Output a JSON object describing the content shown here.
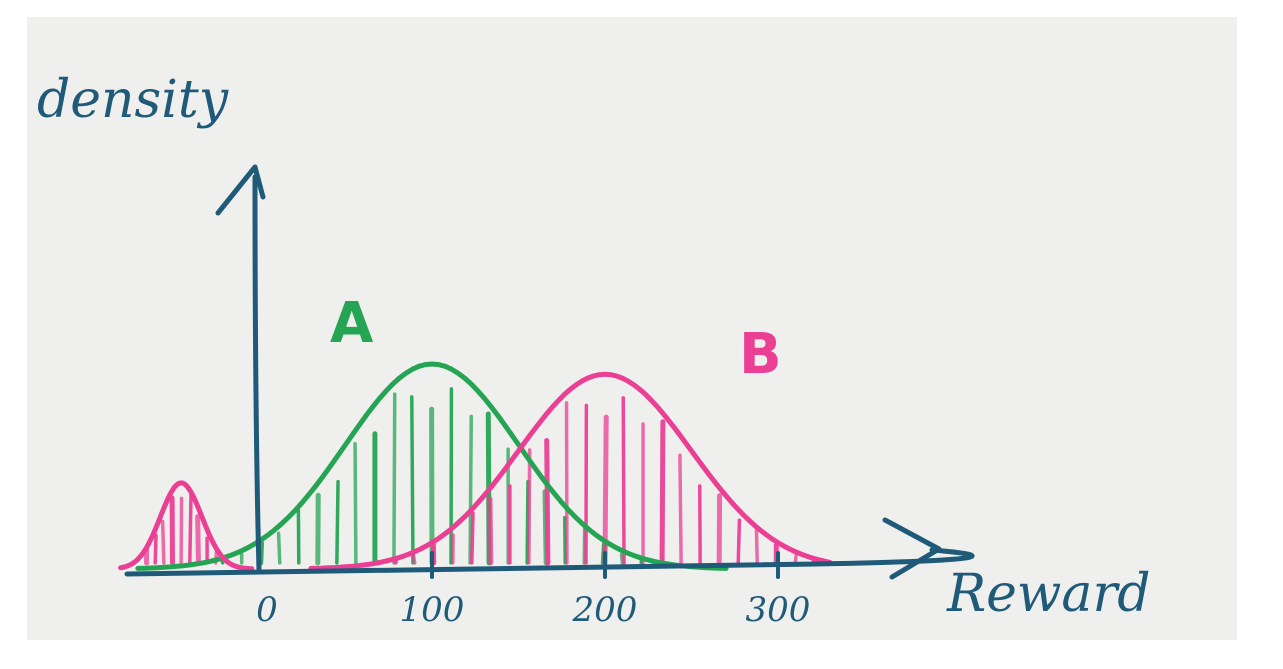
{
  "chart_data": {
    "type": "area",
    "xlabel": "Reward",
    "ylabel": "density",
    "xlim": [
      -80,
      330
    ],
    "ylim": [
      0,
      1.55
    ],
    "x_ticks": [
      0,
      100,
      200,
      300
    ],
    "x_tick_labels": [
      "0",
      "100",
      "200",
      "300"
    ],
    "grid": false,
    "series": [
      {
        "name": "A",
        "color": "#25a454",
        "components": [
          {
            "mean": 100,
            "sd": 50,
            "peak": 1.0
          }
        ]
      },
      {
        "name": "B",
        "color": "#ea3f93",
        "components": [
          {
            "mean": 200,
            "sd": 50,
            "peak": 0.95
          },
          {
            "mean": -45,
            "sd": 12,
            "peak": 0.42
          }
        ]
      }
    ]
  }
}
